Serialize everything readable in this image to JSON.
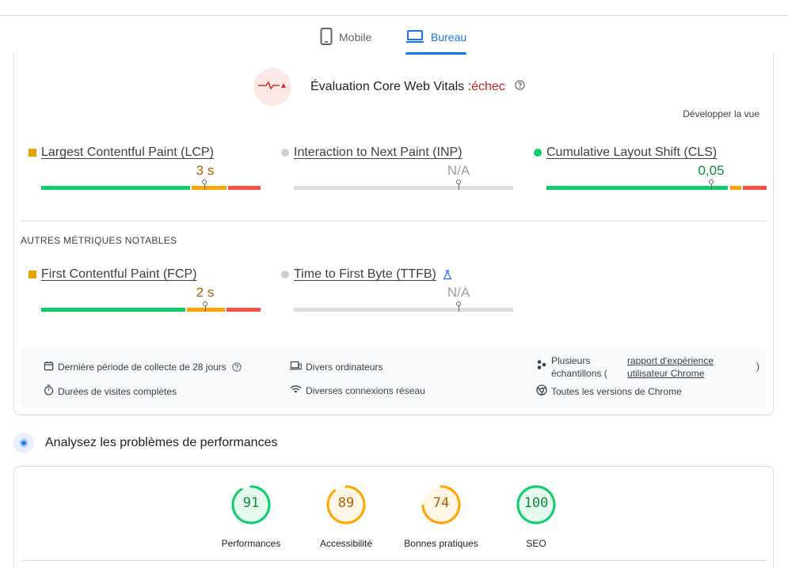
{
  "tabs": {
    "mobile": "Mobile",
    "desktop": "Bureau"
  },
  "cwv": {
    "title": "Évaluation Core Web Vitals :",
    "status": "échec",
    "expand": "Développer la vue"
  },
  "metrics": [
    {
      "name": "Largest Contentful Paint (LCP)",
      "value": "3 s",
      "rating": "average",
      "marker": 0.74
    },
    {
      "name": "Interaction to Next Paint (INP)",
      "value": "N/A",
      "rating": "none",
      "marker": 0.75
    },
    {
      "name": "Cumulative Layout Shift (CLS)",
      "value": "0,05",
      "rating": "good",
      "marker": 0.75
    }
  ],
  "other": {
    "heading": "AUTRES MÉTRIQUES NOTABLES",
    "metrics": [
      {
        "name": "First Contentful Paint (FCP)",
        "value": "2 s",
        "rating": "average",
        "marker": 0.75
      },
      {
        "name": "Time to First Byte (TTFB)",
        "value": "N/A",
        "rating": "none",
        "marker": 0.75
      }
    ]
  },
  "info": {
    "period": "Dernière période de collecte de 28 jours",
    "visits": "Durées de visites complètes",
    "devices": "Divers ordinateurs",
    "network": "Diverses connexions réseau",
    "samples_1": "Plusieurs",
    "samples_2": "échantillons (",
    "report_1": "rapport d'expérience",
    "report_2": "utilisateur Chrome",
    "samples_end": ")",
    "chrome": "Toutes les versions de Chrome"
  },
  "perf": {
    "heading": "Analysez les problèmes de performances"
  },
  "scores": [
    {
      "label": "Performances",
      "score": "91",
      "value": 91,
      "color": "#0cce6b",
      "bg": "#e6f9ee",
      "text": "#0d8a3a"
    },
    {
      "label": "Accessibilité",
      "score": "89",
      "value": 89,
      "color": "#ffa400",
      "bg": "#fff6e6",
      "text": "#b06000"
    },
    {
      "label": "Bonnes pratiques",
      "score": "74",
      "value": 74,
      "color": "#ffa400",
      "bg": "#fff6e6",
      "text": "#b06000"
    },
    {
      "label": "SEO",
      "score": "100",
      "value": 100,
      "color": "#0cce6b",
      "bg": "#e6f9ee",
      "text": "#0d8a3a"
    }
  ]
}
